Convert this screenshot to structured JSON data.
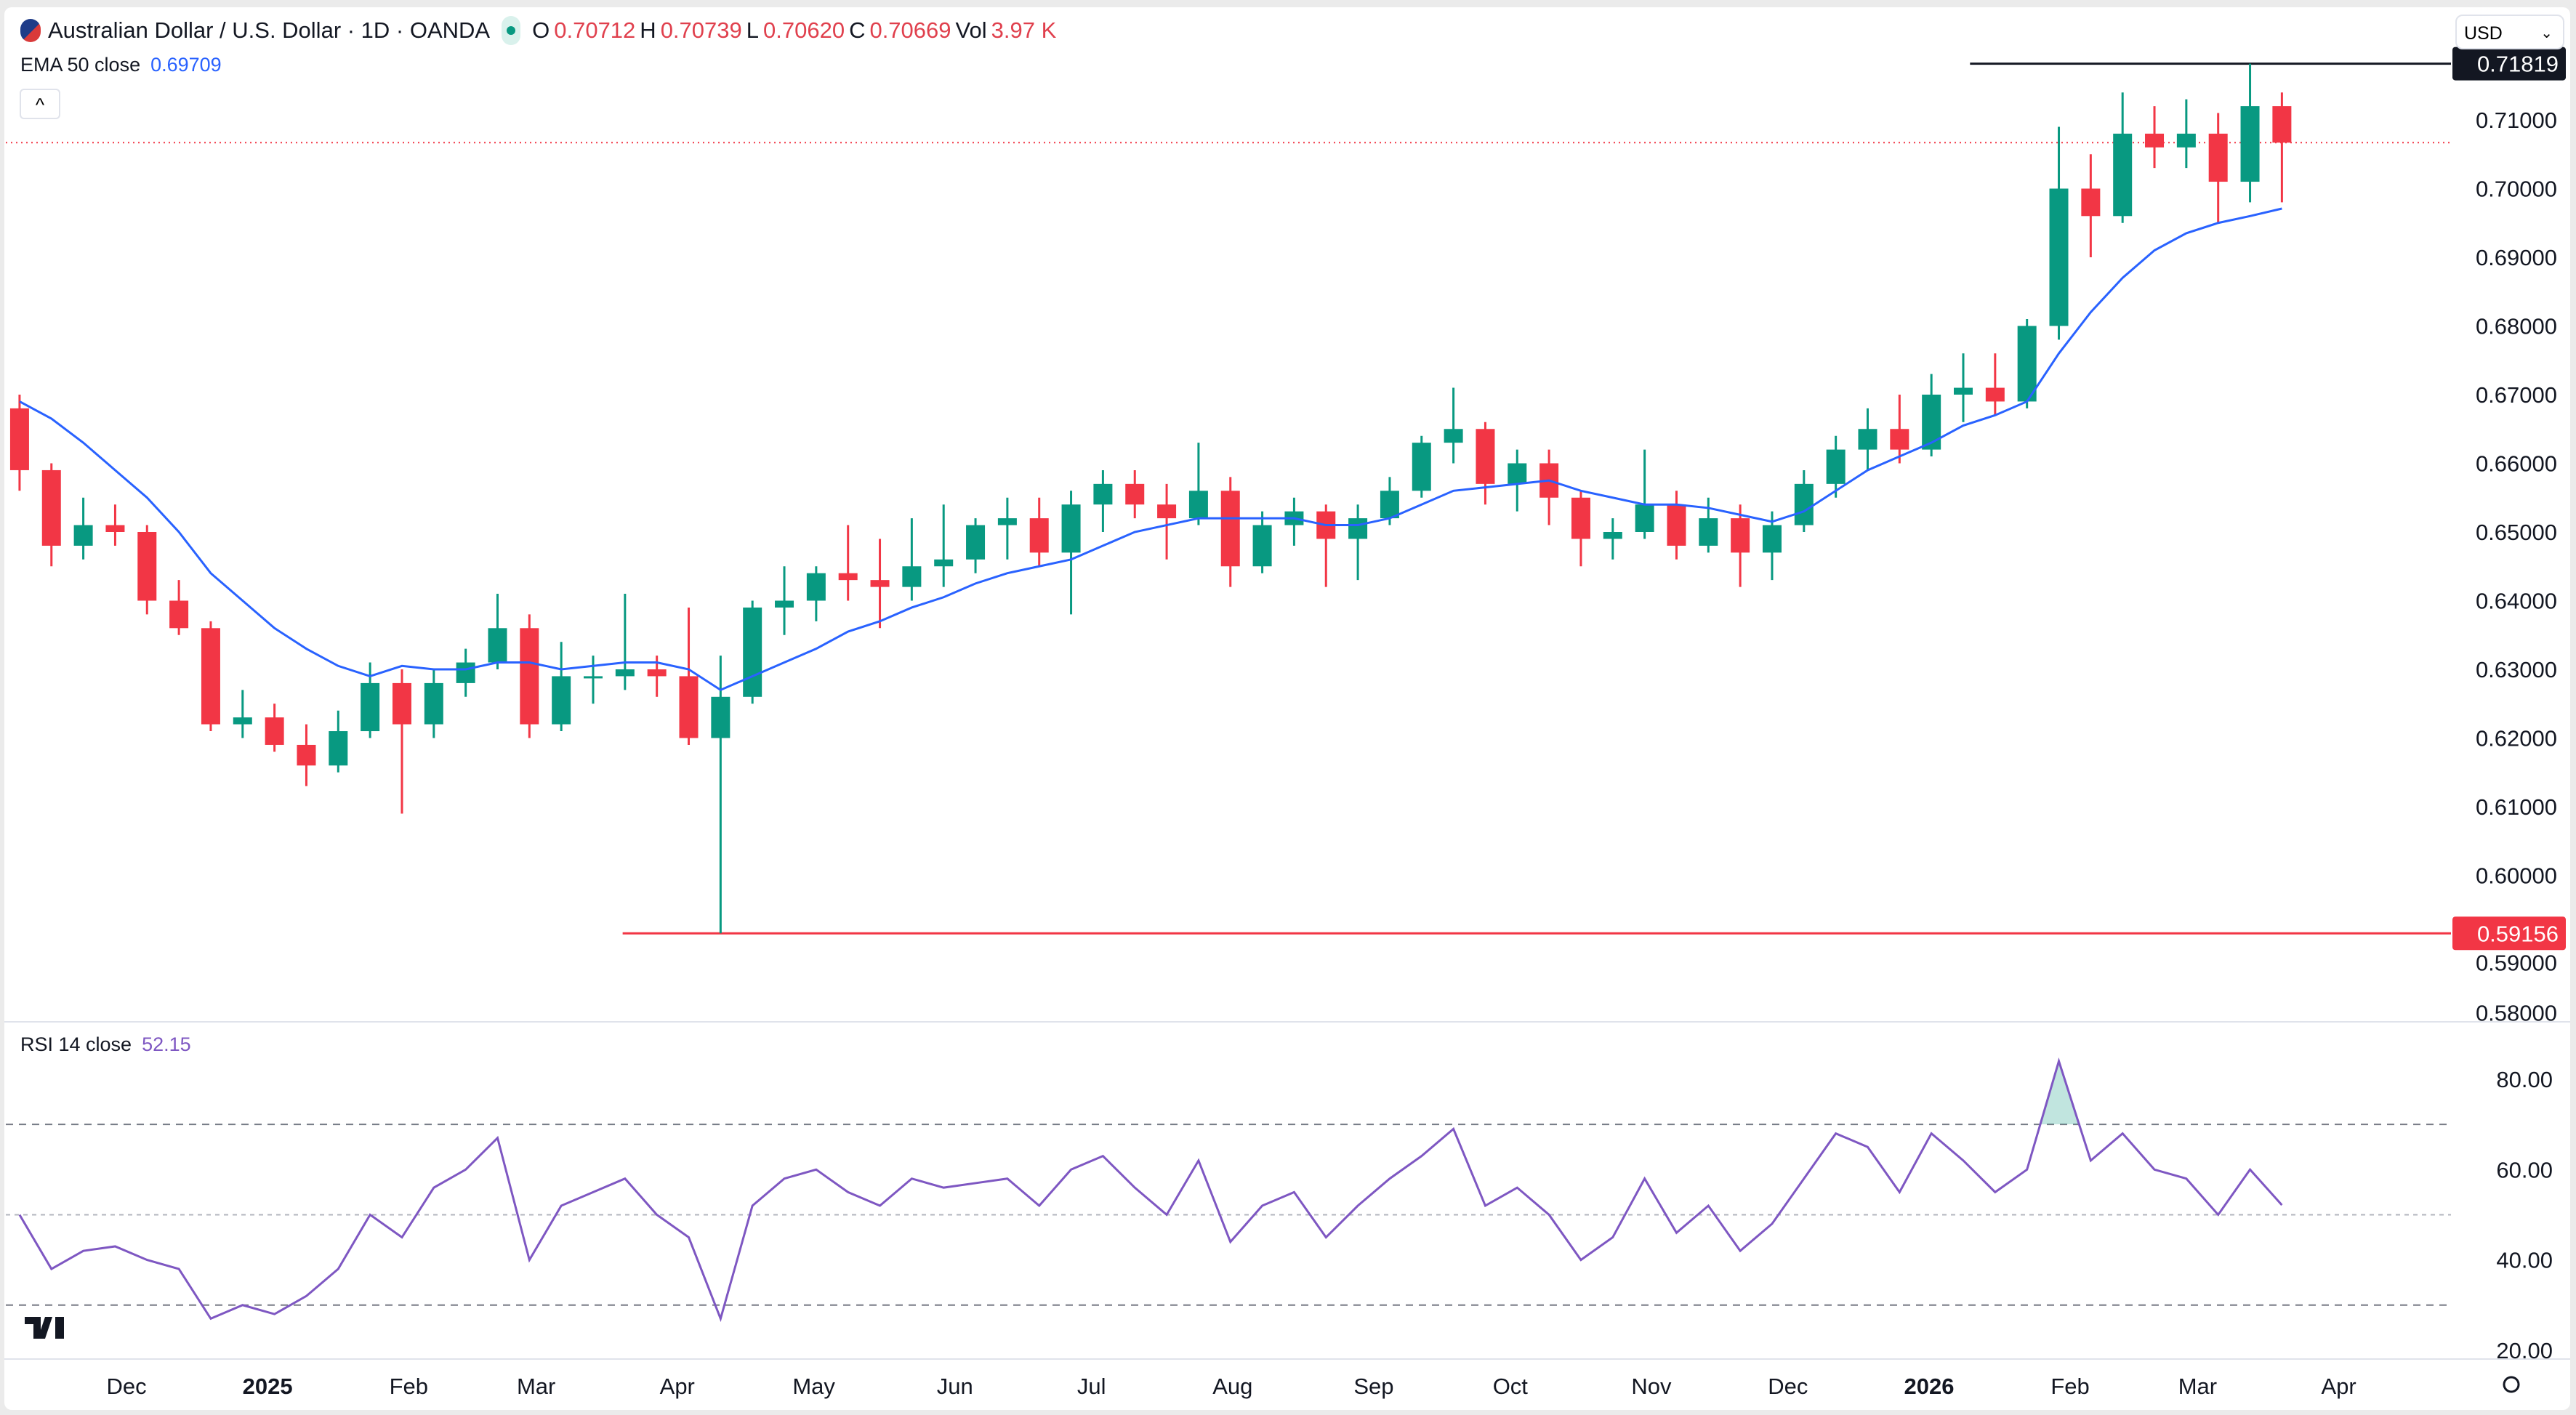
{
  "header": {
    "title": "Australian Dollar / U.S. Dollar · 1D · OANDA",
    "o_label": "O",
    "o": "0.70712",
    "h_label": "H",
    "h": "0.70739",
    "l_label": "L",
    "l": "0.70620",
    "c_label": "C",
    "c": "0.70669",
    "vol_label": "Vol",
    "vol": "3.97 K"
  },
  "ema": {
    "label": "EMA 50 close",
    "value": "0.69709"
  },
  "rsi": {
    "label": "RSI 14 close",
    "value": "52.15"
  },
  "currency": {
    "selected": "USD"
  },
  "collapse_icon": "chevron-up-icon",
  "colors": {
    "up": "#089981",
    "down": "#f23645",
    "ema": "#2962ff",
    "rsi": "#7e57c2",
    "resistance": "#131722",
    "support": "#f23645"
  },
  "chart_data": [
    {
      "type": "candlestick",
      "note_timeframe": "1D",
      "price_ticks": [
        "0.58000",
        "0.59000",
        "0.60000",
        "0.61000",
        "0.62000",
        "0.63000",
        "0.64000",
        "0.65000",
        "0.66000",
        "0.67000",
        "0.68000",
        "0.69000",
        "0.70000",
        "0.71000"
      ],
      "ylim": [
        0.58,
        0.72
      ],
      "time_ticks": [
        {
          "label": "Dec",
          "date": "2024-12-01"
        },
        {
          "label": "2025",
          "date": "2025-01-01",
          "bold": true
        },
        {
          "label": "Feb",
          "date": "2025-02-01"
        },
        {
          "label": "Mar",
          "date": "2025-03-01"
        },
        {
          "label": "Apr",
          "date": "2025-04-01"
        },
        {
          "label": "May",
          "date": "2025-05-01"
        },
        {
          "label": "Jun",
          "date": "2025-06-01"
        },
        {
          "label": "Jul",
          "date": "2025-07-01"
        },
        {
          "label": "Aug",
          "date": "2025-08-01"
        },
        {
          "label": "Sep",
          "date": "2025-09-01"
        },
        {
          "label": "Oct",
          "date": "2025-10-01"
        },
        {
          "label": "Nov",
          "date": "2025-11-01"
        },
        {
          "label": "Dec",
          "date": "2025-12-01"
        },
        {
          "label": "2026",
          "date": "2026-01-01",
          "bold": true
        },
        {
          "label": "Feb",
          "date": "2026-02-01"
        },
        {
          "label": "Mar",
          "date": "2026-03-01"
        },
        {
          "label": "Apr",
          "date": "2026-04-01"
        }
      ],
      "levels": [
        {
          "value": 0.71819,
          "label": "0.71819",
          "from": "2026-01-10",
          "color": "#131722"
        },
        {
          "value": 0.59156,
          "label": "0.59156",
          "from": "2025-03-20",
          "color": "#f23645"
        }
      ],
      "last_price": 0.70669,
      "ohlc": [
        [
          "2024-11-04",
          0.668,
          0.67,
          0.656,
          0.659
        ],
        [
          "2024-11-11",
          0.659,
          0.66,
          0.645,
          0.648
        ],
        [
          "2024-11-18",
          0.648,
          0.655,
          0.646,
          0.651
        ],
        [
          "2024-11-25",
          0.651,
          0.654,
          0.648,
          0.65
        ],
        [
          "2024-12-02",
          0.65,
          0.651,
          0.638,
          0.64
        ],
        [
          "2024-12-09",
          0.64,
          0.643,
          0.635,
          0.636
        ],
        [
          "2024-12-16",
          0.636,
          0.637,
          0.621,
          0.622
        ],
        [
          "2024-12-23",
          0.622,
          0.627,
          0.62,
          0.623
        ],
        [
          "2024-12-30",
          0.623,
          0.625,
          0.618,
          0.619
        ],
        [
          "2025-01-06",
          0.619,
          0.622,
          0.613,
          0.616
        ],
        [
          "2025-01-13",
          0.616,
          0.624,
          0.615,
          0.621
        ],
        [
          "2025-01-20",
          0.621,
          0.631,
          0.62,
          0.628
        ],
        [
          "2025-01-27",
          0.628,
          0.63,
          0.609,
          0.622
        ],
        [
          "2025-02-03",
          0.622,
          0.63,
          0.62,
          0.628
        ],
        [
          "2025-02-10",
          0.628,
          0.633,
          0.626,
          0.631
        ],
        [
          "2025-02-17",
          0.631,
          0.641,
          0.63,
          0.636
        ],
        [
          "2025-02-24",
          0.636,
          0.638,
          0.62,
          0.622
        ],
        [
          "2025-03-03",
          0.622,
          0.634,
          0.621,
          0.629
        ],
        [
          "2025-03-10",
          0.629,
          0.632,
          0.625,
          0.629
        ],
        [
          "2025-03-17",
          0.629,
          0.641,
          0.627,
          0.63
        ],
        [
          "2025-03-24",
          0.63,
          0.632,
          0.626,
          0.629
        ],
        [
          "2025-03-31",
          0.629,
          0.639,
          0.619,
          0.62
        ],
        [
          "2025-04-07",
          0.62,
          0.632,
          0.59156,
          0.626
        ],
        [
          "2025-04-14",
          0.626,
          0.64,
          0.625,
          0.639
        ],
        [
          "2025-04-21",
          0.639,
          0.645,
          0.635,
          0.64
        ],
        [
          "2025-04-28",
          0.64,
          0.645,
          0.637,
          0.644
        ],
        [
          "2025-05-05",
          0.644,
          0.651,
          0.64,
          0.643
        ],
        [
          "2025-05-12",
          0.643,
          0.649,
          0.636,
          0.642
        ],
        [
          "2025-05-19",
          0.642,
          0.652,
          0.64,
          0.645
        ],
        [
          "2025-05-26",
          0.645,
          0.654,
          0.642,
          0.646
        ],
        [
          "2025-06-02",
          0.646,
          0.652,
          0.644,
          0.651
        ],
        [
          "2025-06-09",
          0.651,
          0.655,
          0.646,
          0.652
        ],
        [
          "2025-06-16",
          0.652,
          0.655,
          0.645,
          0.647
        ],
        [
          "2025-06-23",
          0.647,
          0.656,
          0.638,
          0.654
        ],
        [
          "2025-06-30",
          0.654,
          0.659,
          0.65,
          0.657
        ],
        [
          "2025-07-07",
          0.657,
          0.659,
          0.652,
          0.654
        ],
        [
          "2025-07-14",
          0.654,
          0.657,
          0.646,
          0.652
        ],
        [
          "2025-07-21",
          0.652,
          0.663,
          0.651,
          0.656
        ],
        [
          "2025-07-28",
          0.656,
          0.658,
          0.642,
          0.645
        ],
        [
          "2025-08-04",
          0.645,
          0.653,
          0.644,
          0.651
        ],
        [
          "2025-08-11",
          0.651,
          0.655,
          0.648,
          0.653
        ],
        [
          "2025-08-18",
          0.653,
          0.654,
          0.642,
          0.649
        ],
        [
          "2025-08-25",
          0.649,
          0.654,
          0.643,
          0.652
        ],
        [
          "2025-09-01",
          0.652,
          0.658,
          0.651,
          0.656
        ],
        [
          "2025-09-08",
          0.656,
          0.664,
          0.655,
          0.663
        ],
        [
          "2025-09-15",
          0.663,
          0.671,
          0.66,
          0.665
        ],
        [
          "2025-09-22",
          0.665,
          0.666,
          0.654,
          0.657
        ],
        [
          "2025-09-29",
          0.657,
          0.662,
          0.653,
          0.66
        ],
        [
          "2025-10-06",
          0.66,
          0.662,
          0.651,
          0.655
        ],
        [
          "2025-10-13",
          0.655,
          0.656,
          0.645,
          0.649
        ],
        [
          "2025-10-20",
          0.649,
          0.652,
          0.646,
          0.65
        ],
        [
          "2025-10-27",
          0.65,
          0.662,
          0.649,
          0.654
        ],
        [
          "2025-11-03",
          0.654,
          0.656,
          0.646,
          0.648
        ],
        [
          "2025-11-10",
          0.648,
          0.655,
          0.647,
          0.652
        ],
        [
          "2025-11-17",
          0.652,
          0.654,
          0.642,
          0.647
        ],
        [
          "2025-11-24",
          0.647,
          0.653,
          0.643,
          0.651
        ],
        [
          "2025-12-01",
          0.651,
          0.659,
          0.65,
          0.657
        ],
        [
          "2025-12-08",
          0.657,
          0.664,
          0.655,
          0.662
        ],
        [
          "2025-12-15",
          0.662,
          0.668,
          0.659,
          0.665
        ],
        [
          "2025-12-22",
          0.665,
          0.67,
          0.66,
          0.662
        ],
        [
          "2025-12-29",
          0.662,
          0.673,
          0.661,
          0.67
        ],
        [
          "2026-01-05",
          0.67,
          0.676,
          0.666,
          0.671
        ],
        [
          "2026-01-12",
          0.671,
          0.676,
          0.667,
          0.669
        ],
        [
          "2026-01-19",
          0.669,
          0.681,
          0.668,
          0.68
        ],
        [
          "2026-01-26",
          0.68,
          0.709,
          0.678,
          0.7
        ],
        [
          "2026-02-02",
          0.7,
          0.705,
          0.69,
          0.696
        ],
        [
          "2026-02-09",
          0.696,
          0.714,
          0.695,
          0.708
        ],
        [
          "2026-02-16",
          0.708,
          0.712,
          0.703,
          0.706
        ],
        [
          "2026-02-23",
          0.706,
          0.713,
          0.703,
          0.708
        ],
        [
          "2026-03-02",
          0.708,
          0.711,
          0.695,
          0.701
        ],
        [
          "2026-03-09",
          0.701,
          0.71819,
          0.698,
          0.712
        ],
        [
          "2026-03-16",
          0.712,
          0.714,
          0.698,
          0.70669
        ]
      ],
      "ema50": [
        0.669,
        0.6665,
        0.663,
        0.659,
        0.655,
        0.65,
        0.644,
        0.64,
        0.636,
        0.633,
        0.6305,
        0.629,
        0.6305,
        0.63,
        0.63,
        0.631,
        0.631,
        0.63,
        0.6305,
        0.631,
        0.631,
        0.63,
        0.627,
        0.629,
        0.631,
        0.633,
        0.6355,
        0.637,
        0.639,
        0.6405,
        0.6425,
        0.644,
        0.645,
        0.646,
        0.648,
        0.65,
        0.651,
        0.652,
        0.652,
        0.652,
        0.652,
        0.651,
        0.651,
        0.652,
        0.654,
        0.656,
        0.6565,
        0.657,
        0.6575,
        0.656,
        0.655,
        0.654,
        0.654,
        0.6535,
        0.6525,
        0.6515,
        0.653,
        0.656,
        0.659,
        0.661,
        0.663,
        0.6655,
        0.667,
        0.669,
        0.676,
        0.682,
        0.687,
        0.691,
        0.6935,
        0.695,
        0.696,
        0.69709
      ]
    },
    {
      "type": "line",
      "name": "RSI 14 close",
      "ylim": [
        15,
        90
      ],
      "ticks": [
        "20.00",
        "40.00",
        "60.00",
        "80.00"
      ],
      "bands": [
        70,
        50,
        30
      ],
      "values": [
        50,
        38,
        42,
        43,
        40,
        38,
        27,
        30,
        28,
        32,
        38,
        50,
        45,
        56,
        60,
        67,
        40,
        52,
        55,
        58,
        50,
        45,
        27,
        52,
        58,
        60,
        55,
        52,
        58,
        56,
        57,
        58,
        52,
        60,
        63,
        56,
        50,
        62,
        44,
        52,
        55,
        45,
        52,
        58,
        63,
        69,
        52,
        56,
        50,
        40,
        45,
        58,
        46,
        52,
        42,
        48,
        58,
        68,
        65,
        55,
        68,
        62,
        55,
        60,
        84,
        62,
        68,
        60,
        58,
        50,
        60,
        52.15
      ]
    }
  ]
}
